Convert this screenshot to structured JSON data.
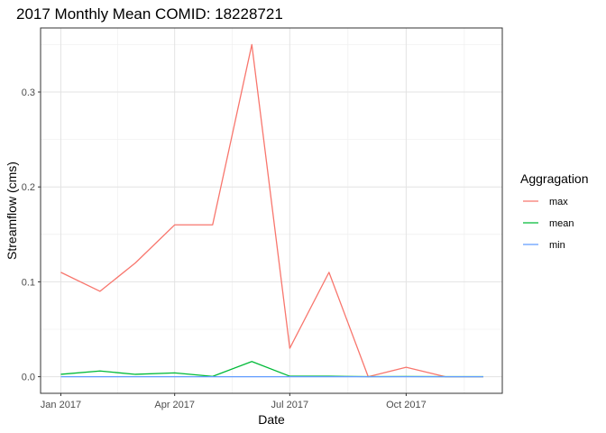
{
  "chart_data": {
    "type": "line",
    "title": "2017 Monthly Mean COMID: 18228721",
    "xlabel": "Date",
    "ylabel": "Streamflow (cms)",
    "x": [
      "2017-01-01",
      "2017-02-01",
      "2017-03-01",
      "2017-04-01",
      "2017-05-01",
      "2017-06-01",
      "2017-07-01",
      "2017-08-01",
      "2017-09-01",
      "2017-10-01",
      "2017-11-01",
      "2017-12-01"
    ],
    "series": [
      {
        "name": "max",
        "color": "#F8766D",
        "values": [
          0.11,
          0.09,
          0.12,
          0.16,
          0.16,
          0.35,
          0.03,
          0.11,
          0.0,
          0.01,
          0.0,
          0.0
        ]
      },
      {
        "name": "mean",
        "color": "#00BA38",
        "values": [
          0.0025,
          0.006,
          0.0025,
          0.004,
          0.0003,
          0.016,
          0.0005,
          0.0005,
          0.0001,
          0.0002,
          0.0001,
          0.0001
        ]
      },
      {
        "name": "min",
        "color": "#619CFF",
        "values": [
          0,
          0,
          0,
          0,
          0,
          0,
          0,
          0,
          0,
          0,
          0,
          0
        ]
      }
    ],
    "x_ticks": [
      {
        "date": "2017-01-01",
        "label": "Jan 2017"
      },
      {
        "date": "2017-04-01",
        "label": "Apr 2017"
      },
      {
        "date": "2017-07-01",
        "label": "Jul 2017"
      },
      {
        "date": "2017-10-01",
        "label": "Oct 2017"
      }
    ],
    "y_ticks": [
      {
        "value": 0.0,
        "label": "0.0"
      },
      {
        "value": 0.1,
        "label": "0.1"
      },
      {
        "value": 0.2,
        "label": "0.2"
      },
      {
        "value": 0.3,
        "label": "0.3"
      }
    ],
    "xlim": [
      "2016-12-16",
      "2017-12-16"
    ],
    "ylim": [
      -0.0175,
      0.3675
    ],
    "grid": true,
    "legend": {
      "title": "Aggragation",
      "position": "right"
    }
  }
}
